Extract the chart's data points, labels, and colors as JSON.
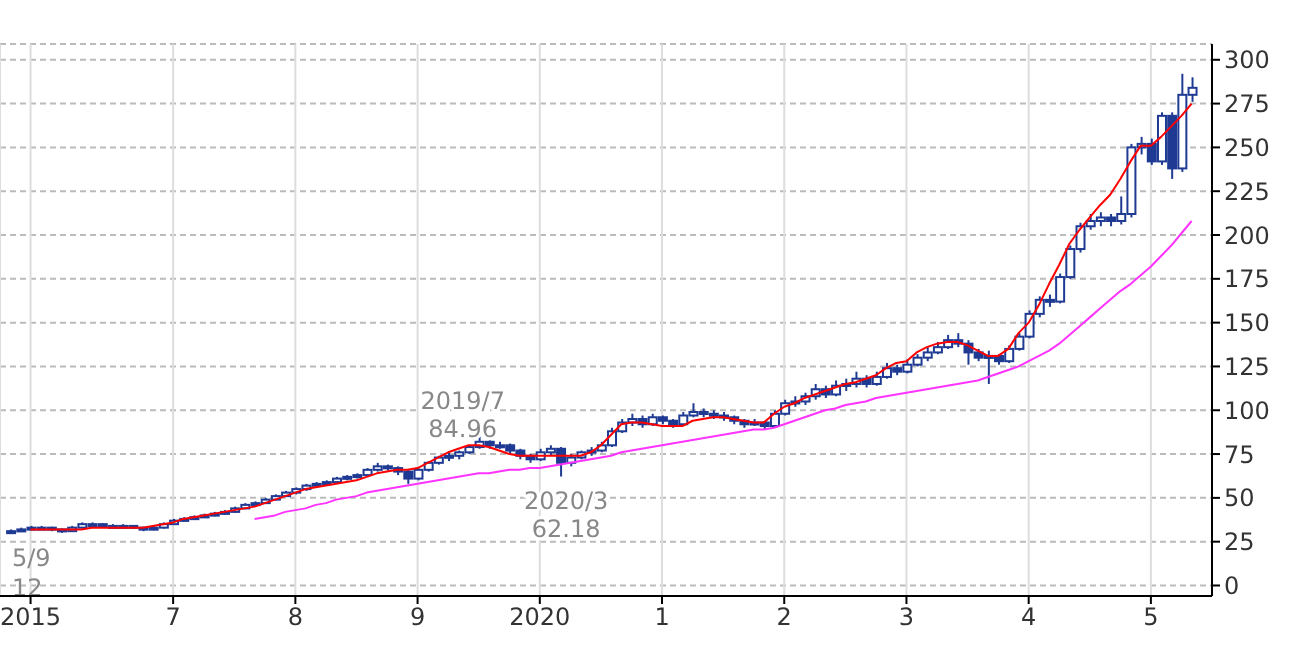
{
  "chart_data": {
    "type": "candlestick",
    "color": "#1f3a93",
    "x": [
      "2015-09",
      "2015-10",
      "2015-11",
      "2015-12",
      "2016-01",
      "2016-02",
      "2016-03",
      "2016-04",
      "2016-05",
      "2016-06",
      "2016-07",
      "2016-08",
      "2016-09",
      "2016-10",
      "2016-11",
      "2016-12",
      "2017-01",
      "2017-02",
      "2017-03",
      "2017-04",
      "2017-05",
      "2017-06",
      "2017-07",
      "2017-08",
      "2017-09",
      "2017-10",
      "2017-11",
      "2017-12",
      "2018-01",
      "2018-02",
      "2018-03",
      "2018-04",
      "2018-05",
      "2018-06",
      "2018-07",
      "2018-08",
      "2018-09",
      "2018-10",
      "2018-11",
      "2018-12",
      "2019-01",
      "2019-02",
      "2019-03",
      "2019-04",
      "2019-05",
      "2019-06",
      "2019-07",
      "2019-08",
      "2019-09",
      "2019-10",
      "2019-11",
      "2019-12",
      "2020-01",
      "2020-02",
      "2020-03",
      "2020-04",
      "2020-05",
      "2020-06",
      "2020-07",
      "2020-08",
      "2020-09",
      "2020-10",
      "2020-11",
      "2020-12",
      "2021-01",
      "2021-02",
      "2021-03",
      "2021-04",
      "2021-05",
      "2021-06",
      "2021-07",
      "2021-08",
      "2021-09",
      "2021-10",
      "2021-11",
      "2021-12",
      "2022-01",
      "2022-02",
      "2022-03",
      "2022-04",
      "2022-05",
      "2022-06",
      "2022-07",
      "2022-08",
      "2022-09",
      "2022-10",
      "2022-11",
      "2022-12",
      "2023-01",
      "2023-02",
      "2023-03",
      "2023-04",
      "2023-05",
      "2023-06",
      "2023-07",
      "2023-08",
      "2023-09",
      "2023-10",
      "2023-11",
      "2023-12",
      "2024-01",
      "2024-02",
      "2024-03",
      "2024-04",
      "2024-05",
      "2024-06",
      "2024-07",
      "2024-08",
      "2024-09",
      "2024-10",
      "2024-11",
      "2024-12",
      "2025-01",
      "2025-02",
      "2025-03",
      "2025-04",
      "2025-05"
    ],
    "ohlc": [
      [
        30,
        32,
        29.5,
        31
      ],
      [
        31,
        33,
        30.5,
        32
      ],
      [
        32,
        34,
        31.5,
        33
      ],
      [
        33,
        34,
        32,
        33
      ],
      [
        33,
        33.5,
        31,
        32
      ],
      [
        32,
        32.5,
        30,
        31
      ],
      [
        31,
        34,
        30.5,
        33
      ],
      [
        33,
        36,
        32.5,
        35
      ],
      [
        35,
        36,
        34,
        35
      ],
      [
        35,
        35.5,
        33.5,
        34
      ],
      [
        34,
        35,
        33,
        34
      ],
      [
        34,
        35,
        33,
        34
      ],
      [
        34,
        34.5,
        32.5,
        33
      ],
      [
        33,
        33.5,
        31,
        32
      ],
      [
        32,
        34,
        31.5,
        33
      ],
      [
        33,
        36,
        32.5,
        35
      ],
      [
        35,
        38,
        34.5,
        37
      ],
      [
        37,
        39,
        36.5,
        38
      ],
      [
        38,
        40,
        37.5,
        39
      ],
      [
        39,
        41,
        38.5,
        40
      ],
      [
        40,
        42,
        39.5,
        41
      ],
      [
        41,
        43,
        40.5,
        42
      ],
      [
        42,
        45,
        41.5,
        44
      ],
      [
        44,
        47,
        43.5,
        46
      ],
      [
        46,
        48,
        45,
        47
      ],
      [
        47,
        50,
        46.5,
        49
      ],
      [
        49,
        52,
        48.5,
        51
      ],
      [
        51,
        54,
        50.5,
        53
      ],
      [
        53,
        56,
        52,
        55
      ],
      [
        55,
        58,
        54,
        57
      ],
      [
        57,
        59,
        56,
        58
      ],
      [
        58,
        60,
        57,
        59
      ],
      [
        59,
        62,
        58,
        61
      ],
      [
        61,
        63,
        60,
        62
      ],
      [
        62,
        64,
        61,
        63
      ],
      [
        63,
        67,
        62,
        66
      ],
      [
        66,
        70,
        65,
        68
      ],
      [
        68,
        69,
        65.5,
        67
      ],
      [
        67,
        68,
        63,
        65
      ],
      [
        65,
        66,
        58,
        61
      ],
      [
        61,
        67,
        60,
        66
      ],
      [
        66,
        71,
        65,
        70
      ],
      [
        70,
        74,
        69,
        73
      ],
      [
        73,
        76,
        71,
        74
      ],
      [
        74,
        77,
        72,
        76
      ],
      [
        76,
        80,
        75,
        79
      ],
      [
        79,
        84.96,
        78,
        82
      ],
      [
        82,
        83,
        78,
        80
      ],
      [
        80,
        82,
        78,
        80
      ],
      [
        80,
        81,
        75,
        77
      ],
      [
        77,
        78,
        72,
        74
      ],
      [
        74,
        75,
        70,
        72
      ],
      [
        72,
        78,
        71,
        76
      ],
      [
        76,
        80,
        74,
        78
      ],
      [
        78,
        79,
        62.18,
        70
      ],
      [
        70,
        75,
        68,
        73
      ],
      [
        73,
        77,
        72,
        76
      ],
      [
        76,
        79,
        74,
        77
      ],
      [
        77,
        82,
        76,
        80
      ],
      [
        80,
        90,
        79,
        88
      ],
      [
        88,
        95,
        87,
        93
      ],
      [
        93,
        98,
        91,
        95
      ],
      [
        95,
        97,
        90,
        92
      ],
      [
        92,
        98,
        91,
        96
      ],
      [
        96,
        97,
        92,
        94
      ],
      [
        94,
        95,
        90,
        92
      ],
      [
        92,
        99,
        91,
        97
      ],
      [
        97,
        104,
        96,
        99
      ],
      [
        99,
        101,
        96,
        98
      ],
      [
        98,
        100,
        95,
        97
      ],
      [
        97,
        99,
        94,
        96
      ],
      [
        96,
        97,
        92,
        94
      ],
      [
        94,
        95,
        90,
        92
      ],
      [
        92,
        95,
        91,
        93
      ],
      [
        93,
        94,
        89,
        91
      ],
      [
        91,
        100,
        90,
        98
      ],
      [
        98,
        106,
        97,
        104
      ],
      [
        104,
        108,
        102,
        105
      ],
      [
        105,
        110,
        103,
        108
      ],
      [
        108,
        115,
        106,
        112
      ],
      [
        112,
        114,
        107,
        109
      ],
      [
        109,
        117,
        108,
        114
      ],
      [
        114,
        118,
        111,
        115
      ],
      [
        115,
        122,
        113,
        118
      ],
      [
        118,
        120,
        113,
        115
      ],
      [
        115,
        122,
        114,
        119
      ],
      [
        119,
        127,
        118,
        124
      ],
      [
        124,
        126,
        120,
        122
      ],
      [
        122,
        129,
        121,
        126
      ],
      [
        126,
        132,
        125,
        130
      ],
      [
        130,
        136,
        128,
        133
      ],
      [
        133,
        139,
        132,
        136
      ],
      [
        136,
        143,
        135,
        140
      ],
      [
        140,
        144,
        136,
        138
      ],
      [
        138,
        140,
        126,
        133
      ],
      [
        133,
        135,
        128,
        130
      ],
      [
        130,
        134,
        115,
        131
      ],
      [
        131,
        132,
        126,
        128
      ],
      [
        128,
        137,
        127,
        135
      ],
      [
        135,
        144,
        134,
        142
      ],
      [
        142,
        157,
        141,
        155
      ],
      [
        155,
        165,
        153,
        163
      ],
      [
        163,
        166,
        159,
        162
      ],
      [
        162,
        178,
        161,
        176
      ],
      [
        176,
        194,
        175,
        192
      ],
      [
        192,
        207,
        190,
        205
      ],
      [
        205,
        212,
        203,
        208
      ],
      [
        208,
        213,
        205,
        210
      ],
      [
        210,
        212,
        205,
        208
      ],
      [
        208,
        222,
        206,
        212
      ],
      [
        212,
        252,
        210,
        250
      ],
      [
        250,
        256,
        246,
        252
      ],
      [
        252,
        255,
        240,
        242
      ],
      [
        242,
        270,
        240,
        268
      ],
      [
        268,
        270,
        232,
        238
      ],
      [
        238,
        292,
        236,
        280
      ],
      [
        280,
        290,
        276,
        284
      ]
    ],
    "series": [
      {
        "type": "line",
        "color": "#ff0000",
        "values": [
          null,
          null,
          32,
          32,
          32,
          32,
          32,
          32,
          33,
          33,
          33,
          33,
          33,
          33,
          34,
          35,
          36,
          38,
          39,
          40,
          41,
          42,
          43,
          44,
          45,
          47,
          49,
          51,
          53,
          55,
          56,
          57,
          58,
          59,
          60,
          62,
          64,
          65,
          66,
          66,
          67,
          70,
          73,
          76,
          78,
          80,
          80,
          79,
          77,
          75,
          74,
          74,
          74,
          74,
          74,
          74,
          74,
          76,
          80,
          86,
          92,
          93,
          93,
          92,
          91,
          91,
          91,
          94,
          95,
          96,
          96,
          95,
          94,
          93,
          93,
          98,
          102,
          104,
          107,
          109,
          111,
          113,
          115,
          116,
          118,
          120,
          124,
          127,
          128,
          133,
          136,
          138,
          139,
          139,
          137,
          134,
          131,
          131,
          135,
          144,
          150,
          160,
          172,
          183,
          195,
          203,
          210,
          217,
          223,
          232,
          242,
          251,
          251,
          256,
          262,
          268,
          275
        ]
      },
      {
        "type": "line",
        "color": "#ff33ff",
        "values": [
          null,
          null,
          null,
          null,
          null,
          null,
          null,
          null,
          null,
          null,
          null,
          null,
          null,
          null,
          null,
          null,
          null,
          null,
          null,
          null,
          null,
          null,
          null,
          null,
          38,
          39,
          40,
          42,
          43,
          44,
          46,
          47,
          49,
          50,
          51,
          53,
          54,
          55,
          56,
          57,
          58,
          59,
          60,
          61,
          62,
          63,
          64,
          64,
          65,
          66,
          66,
          67,
          67,
          68,
          69,
          70,
          71,
          72,
          73,
          74,
          76,
          77,
          78,
          79,
          80,
          81,
          82,
          83,
          84,
          85,
          86,
          87,
          88,
          89,
          89,
          90,
          92,
          94,
          96,
          98,
          100,
          101,
          103,
          104,
          105,
          107,
          108,
          109,
          110,
          111,
          112,
          113,
          114,
          115,
          116,
          117,
          119,
          121,
          123,
          125,
          128,
          131,
          134,
          138,
          143,
          148,
          153,
          158,
          163,
          168,
          172,
          177,
          182,
          188,
          194,
          201,
          208
        ]
      }
    ],
    "xlim": [
      "2015-08",
      "2025-07"
    ],
    "xticks": [
      {
        "value": "2015-11",
        "label": "2015"
      },
      {
        "value": "2017-01",
        "label": "7"
      },
      {
        "value": "2018-01",
        "label": "8"
      },
      {
        "value": "2019-01",
        "label": "9"
      },
      {
        "value": "2020-01",
        "label": "2020"
      },
      {
        "value": "2021-01",
        "label": "1"
      },
      {
        "value": "2022-01",
        "label": "2"
      },
      {
        "value": "2023-01",
        "label": "3"
      },
      {
        "value": "2024-01",
        "label": "4"
      },
      {
        "value": "2025-01",
        "label": "5"
      }
    ],
    "ylim": [
      -6,
      309
    ],
    "yticks": [
      0,
      25,
      50,
      75,
      100,
      125,
      150,
      175,
      200,
      225,
      250,
      275,
      300
    ],
    "grid": true,
    "annotations": [
      {
        "text": "2019/7\n84.96",
        "x": "2019-07",
        "y": 84.96
      },
      {
        "text": "2020/3\n62.18",
        "x": "2020-03",
        "y": 62.18
      },
      "5/9\n12"
    ]
  }
}
